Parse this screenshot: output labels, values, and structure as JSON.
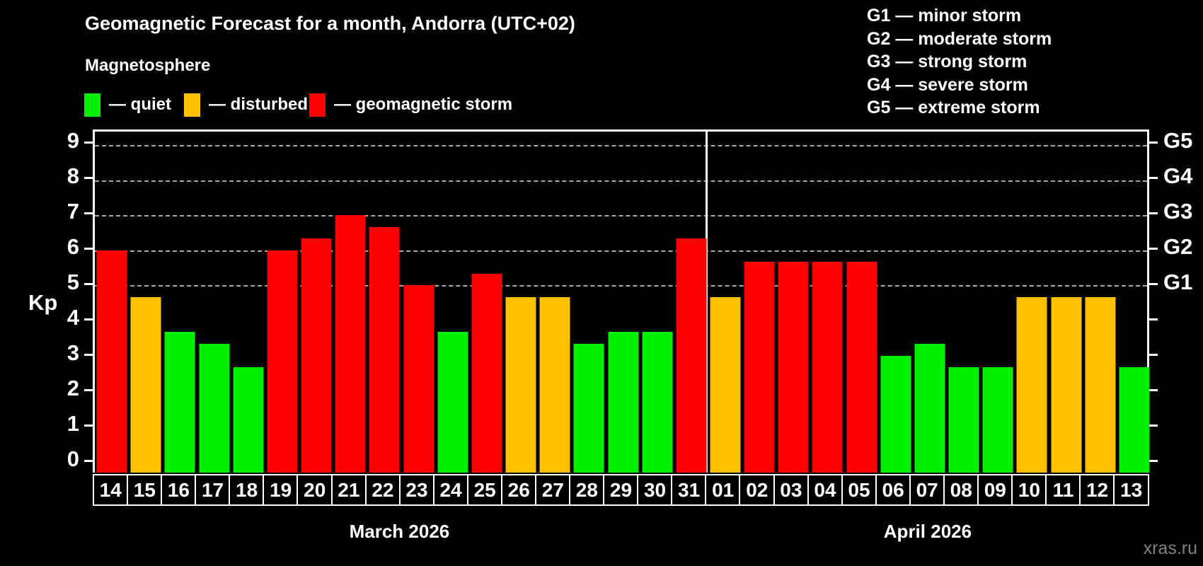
{
  "header": {
    "title": "Geomagnetic Forecast for a month, Andorra (UTC+02)",
    "subtitle": "Magnetosphere",
    "legend": [
      {
        "name": "quiet",
        "label": "— quiet",
        "color": "#00f000"
      },
      {
        "name": "disturbed",
        "label": "— disturbed",
        "color": "#ffc000"
      },
      {
        "name": "storm",
        "label": "— geomagnetic storm",
        "color": "#ff0000"
      }
    ]
  },
  "g_legend": {
    "items": [
      "G1 — minor storm",
      "G2 — moderate storm",
      "G3 — strong storm",
      "G4 — severe storm",
      "G5 — extreme storm"
    ]
  },
  "axes": {
    "y_label": "Kp",
    "y_ticks": [
      "0",
      "1",
      "2",
      "3",
      "4",
      "5",
      "6",
      "7",
      "8",
      "9"
    ],
    "right_ticks": [
      {
        "label": "G1",
        "kp": 5
      },
      {
        "label": "G2",
        "kp": 6
      },
      {
        "label": "G3",
        "kp": 7
      },
      {
        "label": "G4",
        "kp": 8
      },
      {
        "label": "G5",
        "kp": 9
      }
    ],
    "gridlines_at_kp": [
      5,
      6,
      7,
      8,
      9
    ]
  },
  "chart_data": {
    "type": "bar",
    "title": "Geomagnetic Forecast for a month, Andorra (UTC+02)",
    "ylabel": "Kp",
    "ylim": [
      0,
      9
    ],
    "grid": "horizontal dashed at Kp 5..9 (G1..G5)",
    "legend_position": "top-left",
    "status_colors": {
      "quiet": "#00f000",
      "disturbed": "#ffc000",
      "storm": "#ff0000"
    },
    "storm_scale": {
      "G1": 5,
      "G2": 6,
      "G3": 7,
      "G4": 8,
      "G5": 9
    },
    "groups": [
      {
        "month": "March 2026",
        "days": [
          "14",
          "15",
          "16",
          "17",
          "18",
          "19",
          "20",
          "21",
          "22",
          "23",
          "24",
          "25",
          "26",
          "27",
          "28",
          "29",
          "30",
          "31"
        ],
        "values": [
          6.0,
          4.67,
          3.67,
          3.33,
          2.67,
          6.0,
          6.33,
          7.0,
          6.67,
          5.0,
          3.67,
          5.33,
          4.67,
          4.67,
          3.33,
          3.67,
          3.67,
          6.33
        ],
        "status": [
          "storm",
          "disturbed",
          "quiet",
          "quiet",
          "quiet",
          "storm",
          "storm",
          "storm",
          "storm",
          "storm",
          "quiet",
          "storm",
          "disturbed",
          "disturbed",
          "quiet",
          "quiet",
          "quiet",
          "storm"
        ]
      },
      {
        "month": "April 2026",
        "days": [
          "01",
          "02",
          "03",
          "04",
          "05",
          "06",
          "07",
          "08",
          "09",
          "10",
          "11",
          "12",
          "13"
        ],
        "values": [
          4.67,
          5.67,
          5.67,
          5.67,
          5.67,
          3.0,
          3.33,
          2.67,
          2.67,
          4.67,
          4.67,
          4.67,
          2.67
        ],
        "status": [
          "disturbed",
          "storm",
          "storm",
          "storm",
          "storm",
          "quiet",
          "quiet",
          "quiet",
          "quiet",
          "disturbed",
          "disturbed",
          "disturbed",
          "quiet"
        ]
      }
    ]
  },
  "footer": {
    "watermark": "xras.ru"
  }
}
